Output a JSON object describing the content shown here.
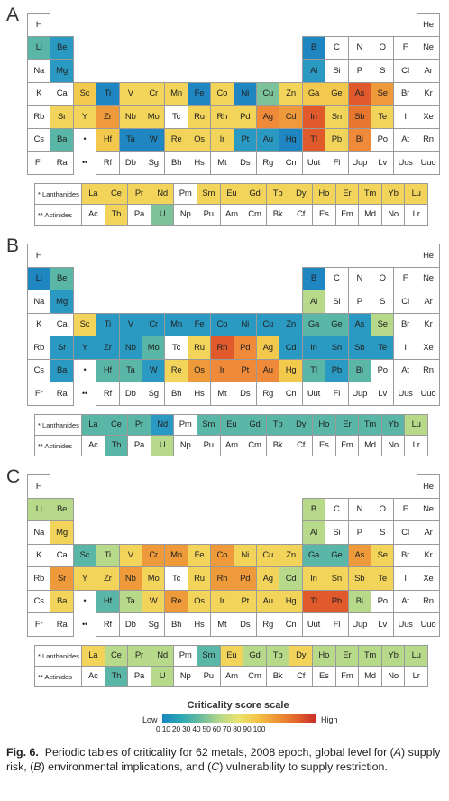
{
  "panels": [
    {
      "label": "A",
      "colors": {
        "Li": "#5ab7a8",
        "Be": "#2a9ac3",
        "Mg": "#2a9ac3",
        "B": "#1f86c1",
        "Al": "#2a9ac3",
        "Sc": "#f2c94c",
        "Ti": "#1f86c1",
        "V": "#f2d45a",
        "Cr": "#f2d45a",
        "Mn": "#f2d45a",
        "Fe": "#1f86c1",
        "Co": "#f2d45a",
        "Ni": "#1f86c1",
        "Cu": "#7cc29a",
        "Zn": "#f2d45a",
        "Ga": "#f2c94c",
        "Ge": "#f2c94c",
        "As": "#e05a2c",
        "Se": "#ee9a3a",
        "Sr": "#f2d45a",
        "Y": "#f2d45a",
        "Zr": "#ee9a3a",
        "Nb": "#f2d45a",
        "Mo": "#f2d45a",
        "Ru": "#f2d45a",
        "Rh": "#f2d45a",
        "Pd": "#f2d45a",
        "Ag": "#ee8a3a",
        "Cd": "#ee9a3a",
        "In": "#e05a2c",
        "Sn": "#f2d45a",
        "Sb": "#e8762f",
        "Te": "#f2d45a",
        "Ba": "#5ab7a8",
        "Hf": "#f2c94c",
        "Ta": "#1f86c1",
        "W": "#1f86c1",
        "Re": "#f2d45a",
        "Os": "#f2d45a",
        "Ir": "#f2d45a",
        "Pt": "#2a9ac3",
        "Au": "#2a9ac3",
        "Hg": "#1f86c1",
        "Tl": "#e05a2c",
        "Pb": "#f2d45a",
        "Bi": "#ee8a3a",
        "La": "#f2d45a",
        "Ce": "#f2d45a",
        "Pr": "#f2d45a",
        "Nd": "#f2d45a",
        "Sm": "#f2d45a",
        "Eu": "#f2d45a",
        "Gd": "#f2d45a",
        "Tb": "#f2d45a",
        "Dy": "#f2d45a",
        "Ho": "#f2d45a",
        "Er": "#f2d45a",
        "Tm": "#f2d45a",
        "Yb": "#f2d45a",
        "Lu": "#f2d45a",
        "Th": "#f2d45a",
        "U": "#7cc29a"
      }
    },
    {
      "label": "B",
      "colors": {
        "Li": "#1f86c1",
        "Be": "#5ab7a8",
        "Mg": "#2a9ac3",
        "B": "#1f86c1",
        "Al": "#b7d98a",
        "Sc": "#f2d45a",
        "Ti": "#2a9ac3",
        "V": "#2a9ac3",
        "Cr": "#2a9ac3",
        "Mn": "#2a9ac3",
        "Fe": "#2a9ac3",
        "Co": "#2a9ac3",
        "Ni": "#2a9ac3",
        "Cu": "#2a9ac3",
        "Zn": "#2a9ac3",
        "Ga": "#5ab7a8",
        "Ge": "#5ab7a8",
        "As": "#2a9ac3",
        "Se": "#b7d98a",
        "Sr": "#2a9ac3",
        "Y": "#2a9ac3",
        "Zr": "#2a9ac3",
        "Nb": "#2a9ac3",
        "Mo": "#5ab7a8",
        "Ru": "#f2d45a",
        "Rh": "#e05a2c",
        "Pd": "#ee8a3a",
        "Ag": "#f2c94c",
        "Cd": "#2a9ac3",
        "In": "#2a9ac3",
        "Sn": "#2a9ac3",
        "Sb": "#2a9ac3",
        "Te": "#2a9ac3",
        "Ba": "#2a9ac3",
        "Hf": "#5ab7a8",
        "Ta": "#5ab7a8",
        "W": "#2a9ac3",
        "Re": "#f2d45a",
        "Os": "#ee9a3a",
        "Ir": "#ee8a3a",
        "Pt": "#ee8a3a",
        "Au": "#ee8a3a",
        "Hg": "#f2c94c",
        "Tl": "#5ab7a8",
        "Pb": "#2a9ac3",
        "Bi": "#5ab7a8",
        "La": "#5ab7a8",
        "Ce": "#5ab7a8",
        "Pr": "#5ab7a8",
        "Nd": "#2a9ac3",
        "Sm": "#5ab7a8",
        "Eu": "#5ab7a8",
        "Gd": "#5ab7a8",
        "Tb": "#5ab7a8",
        "Dy": "#5ab7a8",
        "Ho": "#5ab7a8",
        "Er": "#5ab7a8",
        "Tm": "#5ab7a8",
        "Yb": "#5ab7a8",
        "Lu": "#b7d98a",
        "Th": "#5ab7a8",
        "U": "#b7d98a"
      }
    },
    {
      "label": "C",
      "colors": {
        "Li": "#b7d98a",
        "Be": "#b7d98a",
        "Mg": "#f2d45a",
        "B": "#b7d98a",
        "Al": "#b7d98a",
        "Sc": "#5ab7a8",
        "Ti": "#b7d98a",
        "V": "#f2d45a",
        "Cr": "#ee9a3a",
        "Mn": "#ee9a3a",
        "Fe": "#f2d45a",
        "Co": "#ee9a3a",
        "Ni": "#f2d45a",
        "Cu": "#f2d45a",
        "Zn": "#f2d45a",
        "Ga": "#5ab7a8",
        "Ge": "#5ab7a8",
        "As": "#ee9a3a",
        "Se": "#f2d45a",
        "Sr": "#ee9a3a",
        "Y": "#f2d45a",
        "Zr": "#f2d45a",
        "Nb": "#ee9a3a",
        "Mo": "#f2d45a",
        "Ru": "#f2d45a",
        "Rh": "#ee9a3a",
        "Pd": "#ee9a3a",
        "Ag": "#f2d45a",
        "Cd": "#b7d98a",
        "In": "#f2d45a",
        "Sn": "#f2d45a",
        "Sb": "#f2d45a",
        "Te": "#f2d45a",
        "Ba": "#f2d45a",
        "Hf": "#5ab7a8",
        "Ta": "#b7d98a",
        "W": "#f2d45a",
        "Re": "#ee9a3a",
        "Os": "#f2d45a",
        "Ir": "#f2d45a",
        "Pt": "#f2d45a",
        "Au": "#f2d45a",
        "Hg": "#f2d45a",
        "Tl": "#e05a2c",
        "Pb": "#e05a2c",
        "Bi": "#b7d98a",
        "La": "#f2d45a",
        "Ce": "#b7d98a",
        "Pr": "#b7d98a",
        "Nd": "#b7d98a",
        "Sm": "#5ab7a8",
        "Eu": "#f2d45a",
        "Gd": "#b7d98a",
        "Tb": "#b7d98a",
        "Dy": "#f2d45a",
        "Ho": "#b7d98a",
        "Er": "#b7d98a",
        "Tm": "#b7d98a",
        "Yb": "#b7d98a",
        "Lu": "#b7d98a",
        "Th": "#5ab7a8",
        "U": "#b7d98a"
      }
    }
  ],
  "main_table": [
    [
      "H",
      "",
      "",
      "",
      "",
      "",
      "",
      "",
      "",
      "",
      "",
      "",
      "",
      "",
      "",
      "",
      "",
      "He"
    ],
    [
      "Li",
      "Be",
      "",
      "",
      "",
      "",
      "",
      "",
      "",
      "",
      "",
      "",
      "B",
      "C",
      "N",
      "O",
      "F",
      "Ne"
    ],
    [
      "Na",
      "Mg",
      "",
      "",
      "",
      "",
      "",
      "",
      "",
      "",
      "",
      "",
      "Al",
      "Si",
      "P",
      "S",
      "Cl",
      "Ar"
    ],
    [
      "K",
      "Ca",
      "Sc",
      "Ti",
      "V",
      "Cr",
      "Mn",
      "Fe",
      "Co",
      "Ni",
      "Cu",
      "Zn",
      "Ga",
      "Ge",
      "As",
      "Se",
      "Br",
      "Kr"
    ],
    [
      "Rb",
      "Sr",
      "Y",
      "Zr",
      "Nb",
      "Mo",
      "Tc",
      "Ru",
      "Rh",
      "Pd",
      "Ag",
      "Cd",
      "In",
      "Sn",
      "Sb",
      "Te",
      "I",
      "Xe"
    ],
    [
      "Cs",
      "Ba",
      "•",
      "Hf",
      "Ta",
      "W",
      "Re",
      "Os",
      "Ir",
      "Pt",
      "Au",
      "Hg",
      "Tl",
      "Pb",
      "Bi",
      "Po",
      "At",
      "Rn"
    ],
    [
      "Fr",
      "Ra",
      "••",
      "Rf",
      "Db",
      "Sg",
      "Bh",
      "Hs",
      "Mt",
      "Ds",
      "Rg",
      "Cn",
      "Uut",
      "Fl",
      "Uup",
      "Lv",
      "Uus",
      "Uuo"
    ]
  ],
  "lanthanides_label": "* Lanthanides",
  "actinides_label": "** Actinides",
  "lanthanides": [
    "La",
    "Ce",
    "Pr",
    "Nd",
    "Pm",
    "Sm",
    "Eu",
    "Gd",
    "Tb",
    "Dy",
    "Ho",
    "Er",
    "Tm",
    "Yb",
    "Lu"
  ],
  "actinides": [
    "Ac",
    "Th",
    "Pa",
    "U",
    "Np",
    "Pu",
    "Am",
    "Cm",
    "Bk",
    "Cf",
    "Es",
    "Fm",
    "Md",
    "No",
    "Lr"
  ],
  "scale": {
    "title": "Criticality score scale",
    "low": "Low",
    "high": "High",
    "ticks": "0 10 20 30 40 50 60 70 80 90 100"
  },
  "caption": {
    "prefix": "Fig. 6.",
    "text": "Periodic tables of criticality for 62 metals, 2008 epoch, global level for (A) supply risk, (B) environmental implications, and (C) vulnerability to supply restriction."
  }
}
